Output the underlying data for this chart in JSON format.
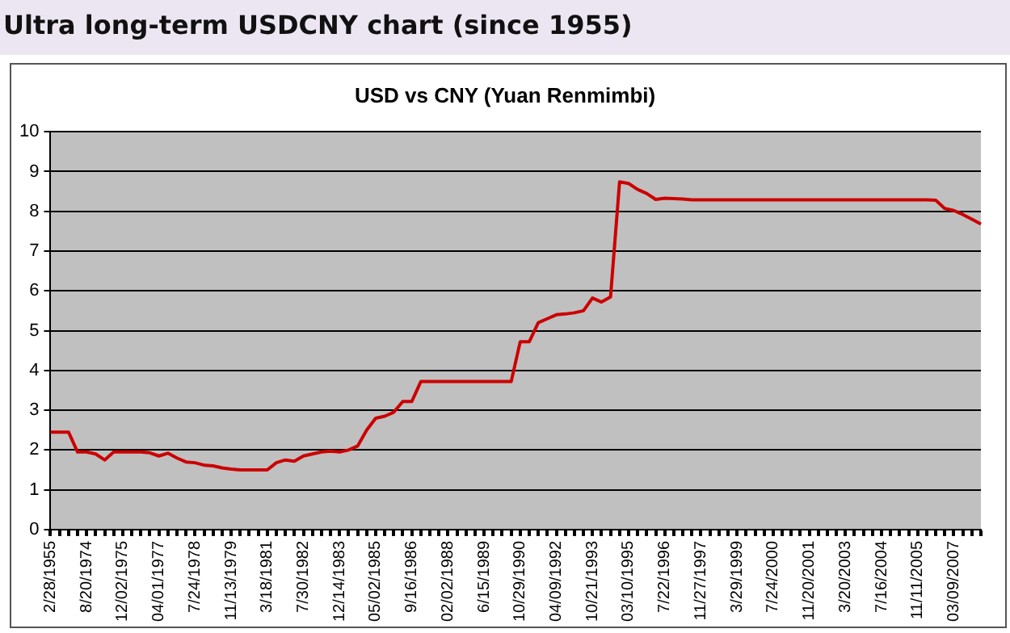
{
  "chart_data": {
    "type": "line",
    "title": "Ultra long-term USDCNY chart (since 1955)",
    "subtitle": "USD vs CNY (Yuan Renmimbi)",
    "categories": [
      "2/28/1955",
      null,
      null,
      null,
      "8/20/1974",
      null,
      null,
      null,
      "12/02/1975",
      null,
      null,
      null,
      "04/01/1977",
      null,
      null,
      null,
      "7/24/1978",
      null,
      null,
      null,
      "11/13/1979",
      null,
      null,
      null,
      "3/18/1981",
      null,
      null,
      null,
      "7/30/1982",
      null,
      null,
      null,
      "12/14/1983",
      null,
      null,
      null,
      "05/02/1985",
      null,
      null,
      null,
      "9/16/1986",
      null,
      null,
      null,
      "02/02/1988",
      null,
      null,
      null,
      "6/15/1989",
      null,
      null,
      null,
      "10/29/1990",
      null,
      null,
      null,
      "04/09/1992",
      null,
      null,
      null,
      "10/21/1993",
      null,
      null,
      null,
      "03/10/1995",
      null,
      null,
      null,
      "7/22/1996",
      null,
      null,
      null,
      "11/27/1997",
      null,
      null,
      null,
      "3/29/1999",
      null,
      null,
      null,
      "7/24/2000",
      null,
      null,
      null,
      "11/20/2001",
      null,
      null,
      null,
      "3/20/2003",
      null,
      null,
      null,
      "7/16/2004",
      null,
      null,
      null,
      "11/11/2005",
      null,
      null,
      null,
      "03/09/2007",
      null,
      null,
      null
    ],
    "series": [
      {
        "color": "#cc0000",
        "values": [
          2.45,
          2.45,
          2.45,
          1.95,
          1.95,
          1.9,
          1.75,
          1.95,
          1.95,
          1.95,
          1.95,
          1.93,
          1.85,
          1.92,
          1.8,
          1.7,
          1.68,
          1.62,
          1.6,
          1.55,
          1.52,
          1.5,
          1.5,
          1.5,
          1.5,
          1.68,
          1.75,
          1.72,
          1.85,
          1.9,
          1.95,
          1.97,
          1.95,
          2.0,
          2.1,
          2.5,
          2.8,
          2.85,
          2.95,
          3.22,
          3.22,
          3.72,
          3.72,
          3.72,
          3.72,
          3.72,
          3.72,
          3.72,
          3.72,
          3.72,
          3.72,
          3.72,
          4.72,
          4.72,
          5.2,
          5.3,
          5.4,
          5.42,
          5.45,
          5.5,
          5.82,
          5.72,
          5.85,
          8.74,
          8.7,
          8.55,
          8.45,
          8.3,
          8.33,
          8.32,
          8.31,
          8.29,
          8.29,
          8.29,
          8.29,
          8.29,
          8.29,
          8.29,
          8.29,
          8.29,
          8.29,
          8.29,
          8.29,
          8.29,
          8.29,
          8.29,
          8.29,
          8.29,
          8.29,
          8.29,
          8.29,
          8.29,
          8.29,
          8.29,
          8.29,
          8.29,
          8.29,
          8.29,
          8.28,
          8.07,
          8.02,
          7.92,
          7.8,
          7.68
        ]
      }
    ],
    "ylim": [
      0,
      10
    ],
    "yticks": [
      0,
      1,
      2,
      3,
      4,
      5,
      6,
      7,
      8,
      9,
      10
    ],
    "grid": "y",
    "legend": false,
    "marker": "none",
    "line_style": "solid"
  }
}
